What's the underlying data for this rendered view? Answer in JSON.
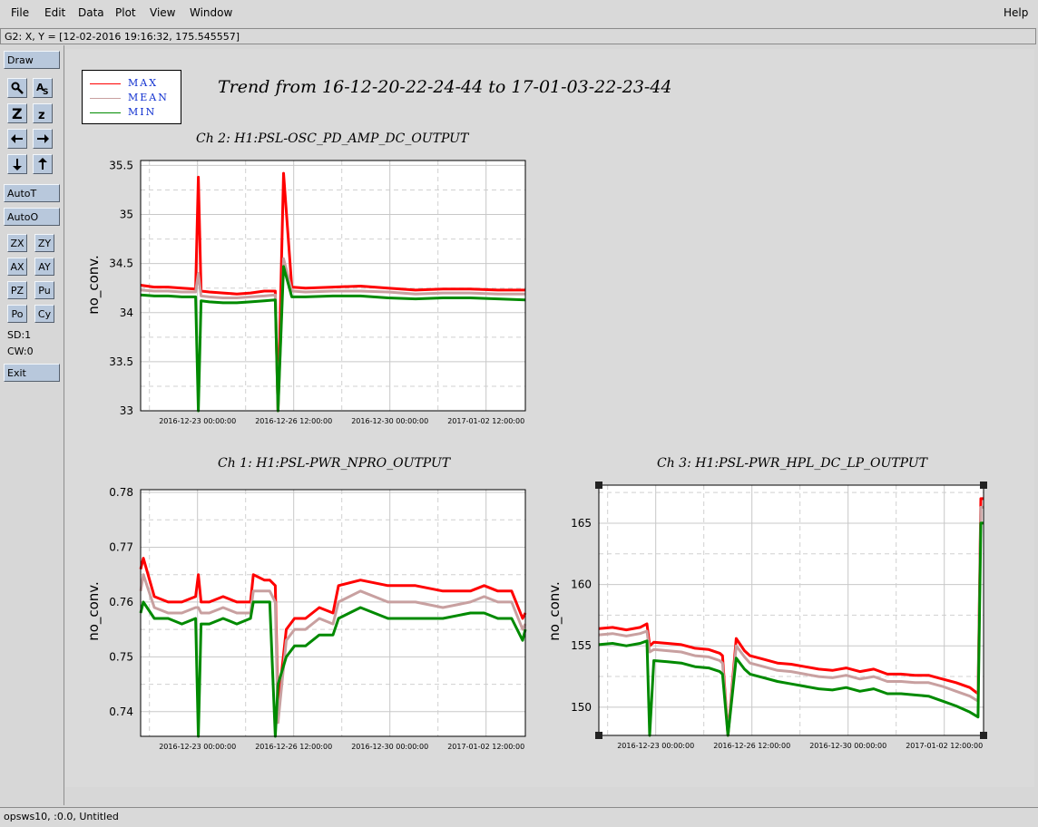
{
  "menu": {
    "file": "File",
    "edit": "Edit",
    "data": "Data",
    "plot": "Plot",
    "view": "View",
    "window": "Window",
    "help": "Help"
  },
  "coord_readout": "G2: X, Y = [12-02-2016 19:16:32, 175.545557]",
  "toolbar": {
    "draw": "Draw",
    "autot": "AutoT",
    "autoo": "AutoO",
    "zx": "ZX",
    "zy": "ZY",
    "ax": "AX",
    "ay": "AY",
    "pz": "PZ",
    "pu": "Pu",
    "po": "Po",
    "cy": "Cy",
    "sd": "SD:1",
    "cw": "CW:0",
    "exit": "Exit"
  },
  "status": "opsws10, :0.0, Untitled",
  "trend_title": "Trend from 16-12-20-22-24-44 to 17-01-03-22-23-44",
  "legend": [
    {
      "label": "MAX",
      "color": "#ff0000"
    },
    {
      "label": "MEAN",
      "color": "#c8a0a0"
    },
    {
      "label": "MIN",
      "color": "#008a00"
    }
  ],
  "chart_data": [
    {
      "type": "line",
      "title": "Ch 2: H1:PSL-OSC_PD_AMP_DC_OUTPUT",
      "ylabel": "no_conv.",
      "ylim": [
        33,
        35.55
      ],
      "yticks": [
        33,
        33.5,
        34,
        34.5,
        35,
        35.5
      ],
      "ytick_labels": [
        "33",
        "33.5",
        "34",
        "34.5",
        "35",
        "35.5"
      ],
      "xlim": [
        0,
        14
      ],
      "xticks": [
        2.07,
        5.57,
        9.07,
        12.57
      ],
      "xtick_labels": [
        "2016-12-23 00:00:00",
        "2016-12-26 12:00:00",
        "2016-12-30 00:00:00",
        "2017-01-02 12:00:00"
      ],
      "x": [
        0,
        0.5,
        1.0,
        1.5,
        2.0,
        2.1,
        2.2,
        2.5,
        3.0,
        3.5,
        4.0,
        4.5,
        4.9,
        5.0,
        5.2,
        5.5,
        6.0,
        7.0,
        8.0,
        9.0,
        10.0,
        11.0,
        12.0,
        13.0,
        14.0
      ],
      "series": [
        {
          "name": "MAX",
          "values": [
            34.28,
            34.26,
            34.26,
            34.25,
            34.24,
            35.38,
            34.22,
            34.21,
            34.2,
            34.19,
            34.2,
            34.22,
            34.22,
            33.0,
            35.42,
            34.26,
            34.25,
            34.26,
            34.27,
            34.25,
            34.23,
            34.24,
            34.24,
            34.23,
            34.23
          ]
        },
        {
          "name": "MEAN",
          "values": [
            34.23,
            34.22,
            34.22,
            34.21,
            34.21,
            34.4,
            34.17,
            34.16,
            34.15,
            34.15,
            34.16,
            34.17,
            34.18,
            33.0,
            34.55,
            34.22,
            34.21,
            34.22,
            34.22,
            34.21,
            34.19,
            34.2,
            34.2,
            34.19,
            34.19
          ]
        },
        {
          "name": "MIN",
          "values": [
            34.18,
            34.17,
            34.17,
            34.16,
            34.16,
            33.0,
            34.12,
            34.11,
            34.1,
            34.1,
            34.11,
            34.12,
            34.13,
            33.0,
            34.47,
            34.16,
            34.16,
            34.17,
            34.17,
            34.15,
            34.14,
            34.15,
            34.15,
            34.14,
            34.13
          ]
        }
      ]
    },
    {
      "type": "line",
      "title": "Ch 1: H1:PSL-PWR_NPRO_OUTPUT",
      "ylabel": "no_conv.",
      "ylim": [
        0.7355,
        0.7805
      ],
      "yticks": [
        0.74,
        0.75,
        0.76,
        0.77,
        0.78
      ],
      "ytick_labels": [
        "0.74",
        "0.75",
        "0.76",
        "0.77",
        "0.78"
      ],
      "xlim": [
        0,
        14
      ],
      "xticks": [
        2.07,
        5.57,
        9.07,
        12.57
      ],
      "xtick_labels": [
        "2016-12-23 00:00:00",
        "2016-12-26 12:00:00",
        "2016-12-30 00:00:00",
        "2017-01-02 12:00:00"
      ],
      "x": [
        0,
        0.1,
        0.5,
        1.0,
        1.5,
        2.0,
        2.1,
        2.2,
        2.5,
        3.0,
        3.5,
        4.0,
        4.1,
        4.5,
        4.7,
        4.9,
        5.0,
        5.3,
        5.6,
        6.0,
        6.5,
        7.0,
        7.2,
        8.0,
        9.0,
        10.0,
        11.0,
        12.0,
        12.5,
        13.0,
        13.5,
        13.9,
        14.0
      ],
      "series": [
        {
          "name": "MAX",
          "values": [
            0.766,
            0.768,
            0.761,
            0.76,
            0.76,
            0.761,
            0.765,
            0.76,
            0.76,
            0.761,
            0.76,
            0.76,
            0.765,
            0.764,
            0.764,
            0.763,
            0.741,
            0.755,
            0.757,
            0.757,
            0.759,
            0.758,
            0.763,
            0.764,
            0.763,
            0.763,
            0.762,
            0.762,
            0.763,
            0.762,
            0.762,
            0.757,
            0.758
          ]
        },
        {
          "name": "MEAN",
          "values": [
            0.762,
            0.765,
            0.759,
            0.758,
            0.758,
            0.759,
            0.759,
            0.758,
            0.758,
            0.759,
            0.758,
            0.758,
            0.762,
            0.762,
            0.762,
            0.76,
            0.738,
            0.753,
            0.755,
            0.755,
            0.757,
            0.756,
            0.76,
            0.762,
            0.76,
            0.76,
            0.759,
            0.76,
            0.761,
            0.76,
            0.76,
            0.755,
            0.756
          ]
        },
        {
          "name": "MIN",
          "values": [
            0.758,
            0.76,
            0.757,
            0.757,
            0.756,
            0.757,
            0.7355,
            0.756,
            0.756,
            0.757,
            0.756,
            0.757,
            0.76,
            0.76,
            0.76,
            0.7355,
            0.745,
            0.75,
            0.752,
            0.752,
            0.754,
            0.754,
            0.757,
            0.759,
            0.757,
            0.757,
            0.757,
            0.758,
            0.758,
            0.757,
            0.757,
            0.753,
            0.755
          ]
        }
      ]
    },
    {
      "type": "line",
      "title": "Ch 3: H1:PSL-PWR_HPL_DC_LP_OUTPUT",
      "ylabel": "no_conv.",
      "ylim": [
        147.7,
        168.1
      ],
      "yticks": [
        150,
        155,
        160,
        165
      ],
      "ytick_labels": [
        "150",
        "155",
        "160",
        "165"
      ],
      "xlim": [
        0,
        14
      ],
      "xticks": [
        2.07,
        5.57,
        9.07,
        12.57
      ],
      "xtick_labels": [
        "2016-12-23 00:00:00",
        "2016-12-26 12:00:00",
        "2016-12-30 00:00:00",
        "2017-01-02 12:00:00"
      ],
      "x": [
        0,
        0.5,
        1.0,
        1.5,
        1.75,
        1.85,
        2.0,
        2.5,
        3.0,
        3.5,
        4.0,
        4.4,
        4.5,
        4.7,
        5.0,
        5.3,
        5.5,
        6.0,
        6.5,
        7.0,
        7.5,
        8.0,
        8.5,
        9.0,
        9.5,
        10.0,
        10.5,
        11.0,
        11.5,
        12.0,
        12.5,
        13.0,
        13.5,
        13.8,
        13.9,
        14.0
      ],
      "series": [
        {
          "name": "MAX",
          "values": [
            156.4,
            156.5,
            156.3,
            156.5,
            156.8,
            155.0,
            155.3,
            155.2,
            155.1,
            154.8,
            154.7,
            154.4,
            154.2,
            147.7,
            155.6,
            154.6,
            154.2,
            153.9,
            153.6,
            153.5,
            153.3,
            153.1,
            153.0,
            153.2,
            152.9,
            153.1,
            152.7,
            152.7,
            152.6,
            152.6,
            152.3,
            152.0,
            151.6,
            151.1,
            167.0,
            167.0
          ]
        },
        {
          "name": "MEAN",
          "values": [
            155.9,
            156.0,
            155.8,
            156.0,
            156.2,
            154.5,
            154.7,
            154.6,
            154.5,
            154.2,
            154.1,
            153.8,
            153.6,
            147.7,
            155.0,
            154.1,
            153.6,
            153.3,
            153.0,
            152.9,
            152.7,
            152.5,
            152.4,
            152.6,
            152.3,
            152.5,
            152.1,
            152.1,
            152.0,
            152.0,
            151.7,
            151.3,
            150.9,
            150.5,
            166.3,
            166.3
          ]
        },
        {
          "name": "MIN",
          "values": [
            155.1,
            155.2,
            155.0,
            155.2,
            155.4,
            147.7,
            153.8,
            153.7,
            153.6,
            153.3,
            153.2,
            152.9,
            152.7,
            147.7,
            154.0,
            153.1,
            152.7,
            152.4,
            152.1,
            151.9,
            151.7,
            151.5,
            151.4,
            151.6,
            151.3,
            151.5,
            151.1,
            151.1,
            151.0,
            150.9,
            150.5,
            150.1,
            149.6,
            149.2,
            165.0,
            165.0
          ]
        }
      ]
    }
  ]
}
